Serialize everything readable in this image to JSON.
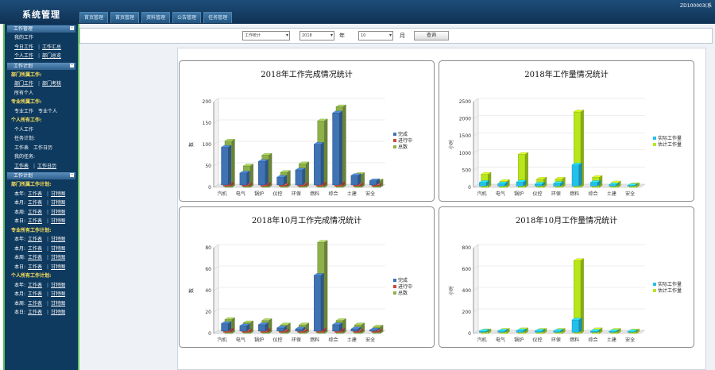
{
  "header": {
    "title": "系统管理",
    "tabs": [
      "首页管理",
      "首页管理",
      "资料管理",
      "公告管理",
      "任务管理"
    ],
    "user": "ZD100003(系"
  },
  "sidebar": {
    "sections": [
      {
        "title": "工作管理",
        "rows": [
          {
            "type": "text",
            "text": "我的工作"
          },
          {
            "type": "links",
            "items": [
              "今日工作",
              "工作汇总"
            ]
          },
          {
            "type": "links",
            "items": [
              "个人工作",
              "部门总览"
            ]
          }
        ]
      },
      {
        "title": "工作计划",
        "rows": [
          {
            "type": "yellow",
            "text": "部门所属工作:"
          },
          {
            "type": "links",
            "items": [
              "部门工作",
              "部门考核"
            ]
          },
          {
            "type": "text",
            "text": "所有个人"
          },
          {
            "type": "yellow",
            "text": "专业所属工作:"
          },
          {
            "type": "plain2",
            "items": [
              "专业工作",
              "专业个人"
            ]
          },
          {
            "type": "yellow",
            "text": "个人所有工作:"
          },
          {
            "type": "text",
            "text": "个人工作"
          },
          {
            "type": "text",
            "text": "任务计划:"
          },
          {
            "type": "plain2",
            "items": [
              "工作表",
              "工作日历"
            ]
          },
          {
            "type": "text",
            "text": "我的任务:"
          },
          {
            "type": "links",
            "items": [
              "工作表",
              "工作日历"
            ]
          }
        ]
      },
      {
        "title": "工作计划",
        "rows": [
          {
            "type": "yellow",
            "text": "部门所属工作计划:"
          },
          {
            "type": "period",
            "label": "本年:",
            "items": [
              "工作表",
              "甘特图"
            ]
          },
          {
            "type": "period",
            "label": "本月:",
            "items": [
              "工作表",
              "甘特图"
            ]
          },
          {
            "type": "period",
            "label": "本周:",
            "items": [
              "工作表",
              "甘特图"
            ]
          },
          {
            "type": "period",
            "label": "本日:",
            "items": [
              "工作表",
              "甘特图"
            ]
          },
          {
            "type": "yellow",
            "text": "专业所有工作计划:"
          },
          {
            "type": "period",
            "label": "本年:",
            "items": [
              "工作表",
              "甘特图"
            ]
          },
          {
            "type": "period",
            "label": "本月:",
            "items": [
              "工作表",
              "甘特图"
            ]
          },
          {
            "type": "period",
            "label": "本周:",
            "items": [
              "工作表",
              "甘特图"
            ]
          },
          {
            "type": "period",
            "label": "本日:",
            "items": [
              "工作表",
              "甘特图"
            ]
          },
          {
            "type": "yellow",
            "text": "个人所有工作计划:"
          },
          {
            "type": "period",
            "label": "本年:",
            "items": [
              "工作表",
              "甘特图"
            ]
          },
          {
            "type": "period",
            "label": "本月:",
            "items": [
              "工作表",
              "甘特图"
            ]
          },
          {
            "type": "period",
            "label": "本周:",
            "items": [
              "工作表",
              "甘特图"
            ]
          },
          {
            "type": "period",
            "label": "本日:",
            "items": [
              "工作表",
              "甘特图"
            ]
          }
        ]
      }
    ]
  },
  "filter": {
    "type_value": "工作统计",
    "year_value": "2018",
    "year_label": "年",
    "month_value": "10",
    "month_label": "月",
    "query_label": "查询"
  },
  "colors": {
    "blue": "#3f73b3",
    "red": "#cc4a3e",
    "green": "#8db04a",
    "cyan": "#22c0ea",
    "lime": "#b7e61a",
    "yellow": "#f0e66a"
  },
  "chart_data": [
    {
      "type": "bar",
      "title": "2018年工作完成情况统计",
      "ylabel": "数",
      "ylim": [
        0,
        200
      ],
      "yticks": [
        0,
        50,
        100,
        150,
        200
      ],
      "categories": [
        "汽机",
        "电气",
        "锅炉",
        "仪控",
        "环保",
        "燃料",
        "综合",
        "土建",
        "安全"
      ],
      "series": [
        {
          "name": "完成",
          "values": [
            88,
            28,
            55,
            18,
            35,
            95,
            168,
            22,
            10
          ]
        },
        {
          "name": "进行中",
          "values": [
            5,
            3,
            4,
            2,
            3,
            5,
            6,
            3,
            2
          ]
        },
        {
          "name": "总数",
          "values": [
            108,
            50,
            75,
            35,
            55,
            155,
            188,
            30,
            15
          ]
        }
      ]
    },
    {
      "type": "bar",
      "title": "2018年工作量情况统计",
      "ylabel": "小时",
      "ylim": [
        0,
        2500
      ],
      "yticks": [
        0,
        500,
        1000,
        1500,
        2000,
        2500
      ],
      "categories": [
        "汽机",
        "电气",
        "锅炉",
        "仪控",
        "环保",
        "燃料",
        "综合",
        "土建",
        "安全"
      ],
      "series": [
        {
          "name": "实际工作量",
          "values": [
            110,
            70,
            120,
            60,
            80,
            620,
            110,
            40,
            20
          ]
        },
        {
          "name": "估计工作量",
          "values": [
            380,
            170,
            960,
            240,
            240,
            2200,
            290,
            130,
            80
          ]
        }
      ]
    },
    {
      "type": "bar",
      "title": "2018年10月工作完成情况统计",
      "ylabel": "数",
      "ylim": [
        0,
        80
      ],
      "yticks": [
        0,
        20,
        40,
        60,
        80
      ],
      "categories": [
        "汽机",
        "电气",
        "锅炉",
        "仪控",
        "环保",
        "燃料",
        "综合",
        "土建",
        "安全"
      ],
      "series": [
        {
          "name": "完成",
          "values": [
            7,
            5,
            6,
            3,
            2,
            52,
            6,
            2,
            1
          ]
        },
        {
          "name": "进行中",
          "values": [
            2,
            1,
            2,
            1,
            1,
            2,
            2,
            1,
            1
          ]
        },
        {
          "name": "总数",
          "values": [
            13,
            10,
            12,
            8,
            8,
            85,
            12,
            8,
            6
          ]
        }
      ]
    },
    {
      "type": "bar",
      "title": "2018年10月工作量情况统计",
      "ylabel": "小时",
      "ylim": [
        0,
        800
      ],
      "yticks": [
        0,
        200,
        400,
        600,
        800
      ],
      "categories": [
        "汽机",
        "电气",
        "锅炉",
        "仪控",
        "环保",
        "燃料",
        "综合",
        "土建",
        "安全"
      ],
      "series": [
        {
          "name": "实际工作量",
          "values": [
            10,
            12,
            15,
            12,
            12,
            115,
            10,
            8,
            6
          ]
        },
        {
          "name": "估计工作量",
          "values": [
            25,
            30,
            35,
            30,
            30,
            680,
            35,
            30,
            25
          ]
        }
      ]
    }
  ]
}
